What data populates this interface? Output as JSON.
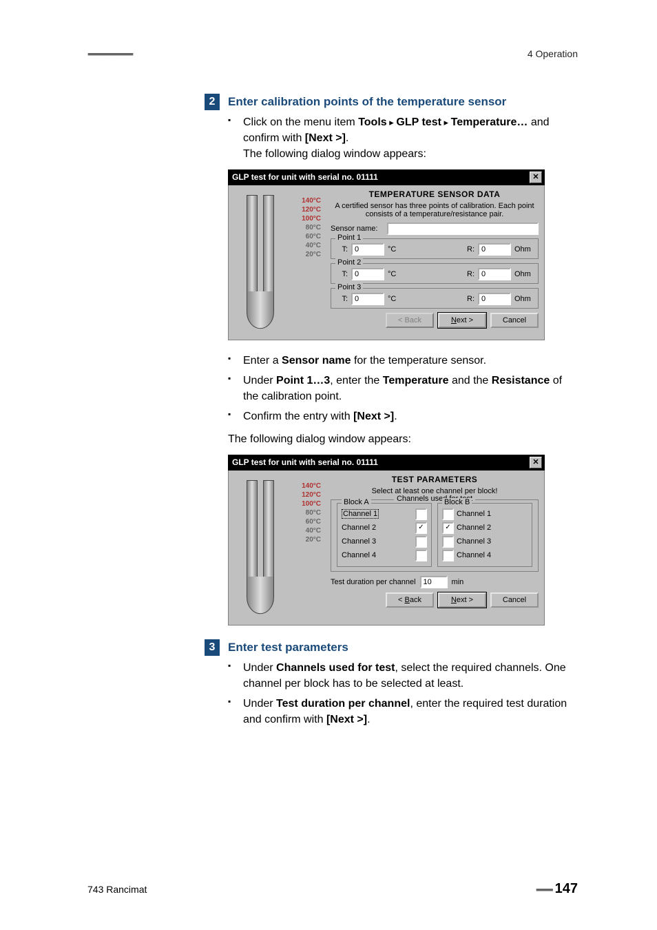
{
  "doc": {
    "header_dashes": "▪▪▪▪▪▪▪▪▪▪▪▪▪▪▪▪▪▪▪▪▪▪",
    "header_right": "4 Operation",
    "footer_left": "743 Rancimat",
    "footer_dashes": "▪▪▪▪▪▪▪▪",
    "page_number": "147"
  },
  "step2": {
    "num": "2",
    "title": "Enter calibration points of the temperature sensor",
    "bullet1_pre": "Click on the menu item ",
    "bullet1_b1": "Tools",
    "bullet1_sep": " ▸ ",
    "bullet1_b2": "GLP test",
    "bullet1_b3": "Temperature…",
    "bullet1_mid": " and confirm with ",
    "bullet1_b4": "[Next >]",
    "bullet1_post": ".",
    "line_following": "The following dialog window appears:"
  },
  "dialog1": {
    "title": "GLP test for unit with serial no. 01111",
    "section_title": "TEMPERATURE SENSOR DATA",
    "subtext": "A certified sensor has three points of calibration. Each point consists of a temperature/resistance pair.",
    "sensor_label": "Sensor name:",
    "sensor_value": "",
    "points": [
      {
        "legend": "Point 1",
        "t_label": "T:",
        "t": "0",
        "tc": "°C",
        "r_label": "R:",
        "r": "0",
        "ohm": "Ohm"
      },
      {
        "legend": "Point 2",
        "t_label": "T:",
        "t": "0",
        "tc": "°C",
        "r_label": "R:",
        "r": "0",
        "ohm": "Ohm"
      },
      {
        "legend": "Point 3",
        "t_label": "T:",
        "t": "0",
        "tc": "°C",
        "r_label": "R:",
        "r": "0",
        "ohm": "Ohm"
      }
    ],
    "btn_back": "< Back",
    "btn_next": "Next >",
    "btn_cancel": "Cancel",
    "scale": [
      "140°C",
      "120°C",
      "100°C",
      "80°C",
      "60°C",
      "40°C",
      "20°C"
    ]
  },
  "after_d1": {
    "bullet_a_pre": "Enter a ",
    "bullet_a_b1": "Sensor name",
    "bullet_a_post": " for the temperature sensor.",
    "bullet_b_pre": "Under ",
    "bullet_b_b1": "Point 1…3",
    "bullet_b_mid1": ", enter the ",
    "bullet_b_b2": "Temperature",
    "bullet_b_mid2": " and the ",
    "bullet_b_b3": "Resistance",
    "bullet_b_post": " of the calibration point.",
    "bullet_c_pre": "Confirm the entry with ",
    "bullet_c_b1": "[Next >]",
    "bullet_c_post": ".",
    "para_following": "The following dialog window appears:"
  },
  "dialog2": {
    "title": "GLP test for unit with serial no. 01111",
    "section_title": "TEST PARAMETERS",
    "subtext": "Select at least one channel per block!",
    "group_legend": "Channels used for test",
    "blockA": {
      "legend": "Block A",
      "rows": [
        {
          "label": "Channel 1",
          "checked": false,
          "dotted": true
        },
        {
          "label": "Channel 2",
          "checked": true,
          "dotted": false
        },
        {
          "label": "Channel 3",
          "checked": false,
          "dotted": false
        },
        {
          "label": "Channel 4",
          "checked": false,
          "dotted": false
        }
      ]
    },
    "blockB": {
      "legend": "Block B",
      "rows": [
        {
          "label": "Channel 1",
          "checked": false
        },
        {
          "label": "Channel 2",
          "checked": true
        },
        {
          "label": "Channel 3",
          "checked": false
        },
        {
          "label": "Channel 4",
          "checked": false
        }
      ]
    },
    "dur_label": "Test duration per channel",
    "dur_value": "10",
    "dur_unit": "min",
    "btn_back": "< Back",
    "btn_next": "Next >",
    "btn_cancel": "Cancel",
    "scale": [
      "140°C",
      "120°C",
      "100°C",
      "80°C",
      "60°C",
      "40°C",
      "20°C"
    ]
  },
  "step3": {
    "num": "3",
    "title": "Enter test parameters",
    "bullet_a_pre": "Under ",
    "bullet_a_b1": "Channels used for test",
    "bullet_a_post": ", select the required channels. One channel per block has to be selected at least.",
    "bullet_b_pre": "Under ",
    "bullet_b_b1": "Test duration per channel",
    "bullet_b_mid": ", enter the required test dura­tion and confirm with ",
    "bullet_b_b2": "[Next >]",
    "bullet_b_post": "."
  },
  "colors": {
    "step_bg": "#1a4a7a",
    "dlg_bg": "#c0c0c0"
  }
}
